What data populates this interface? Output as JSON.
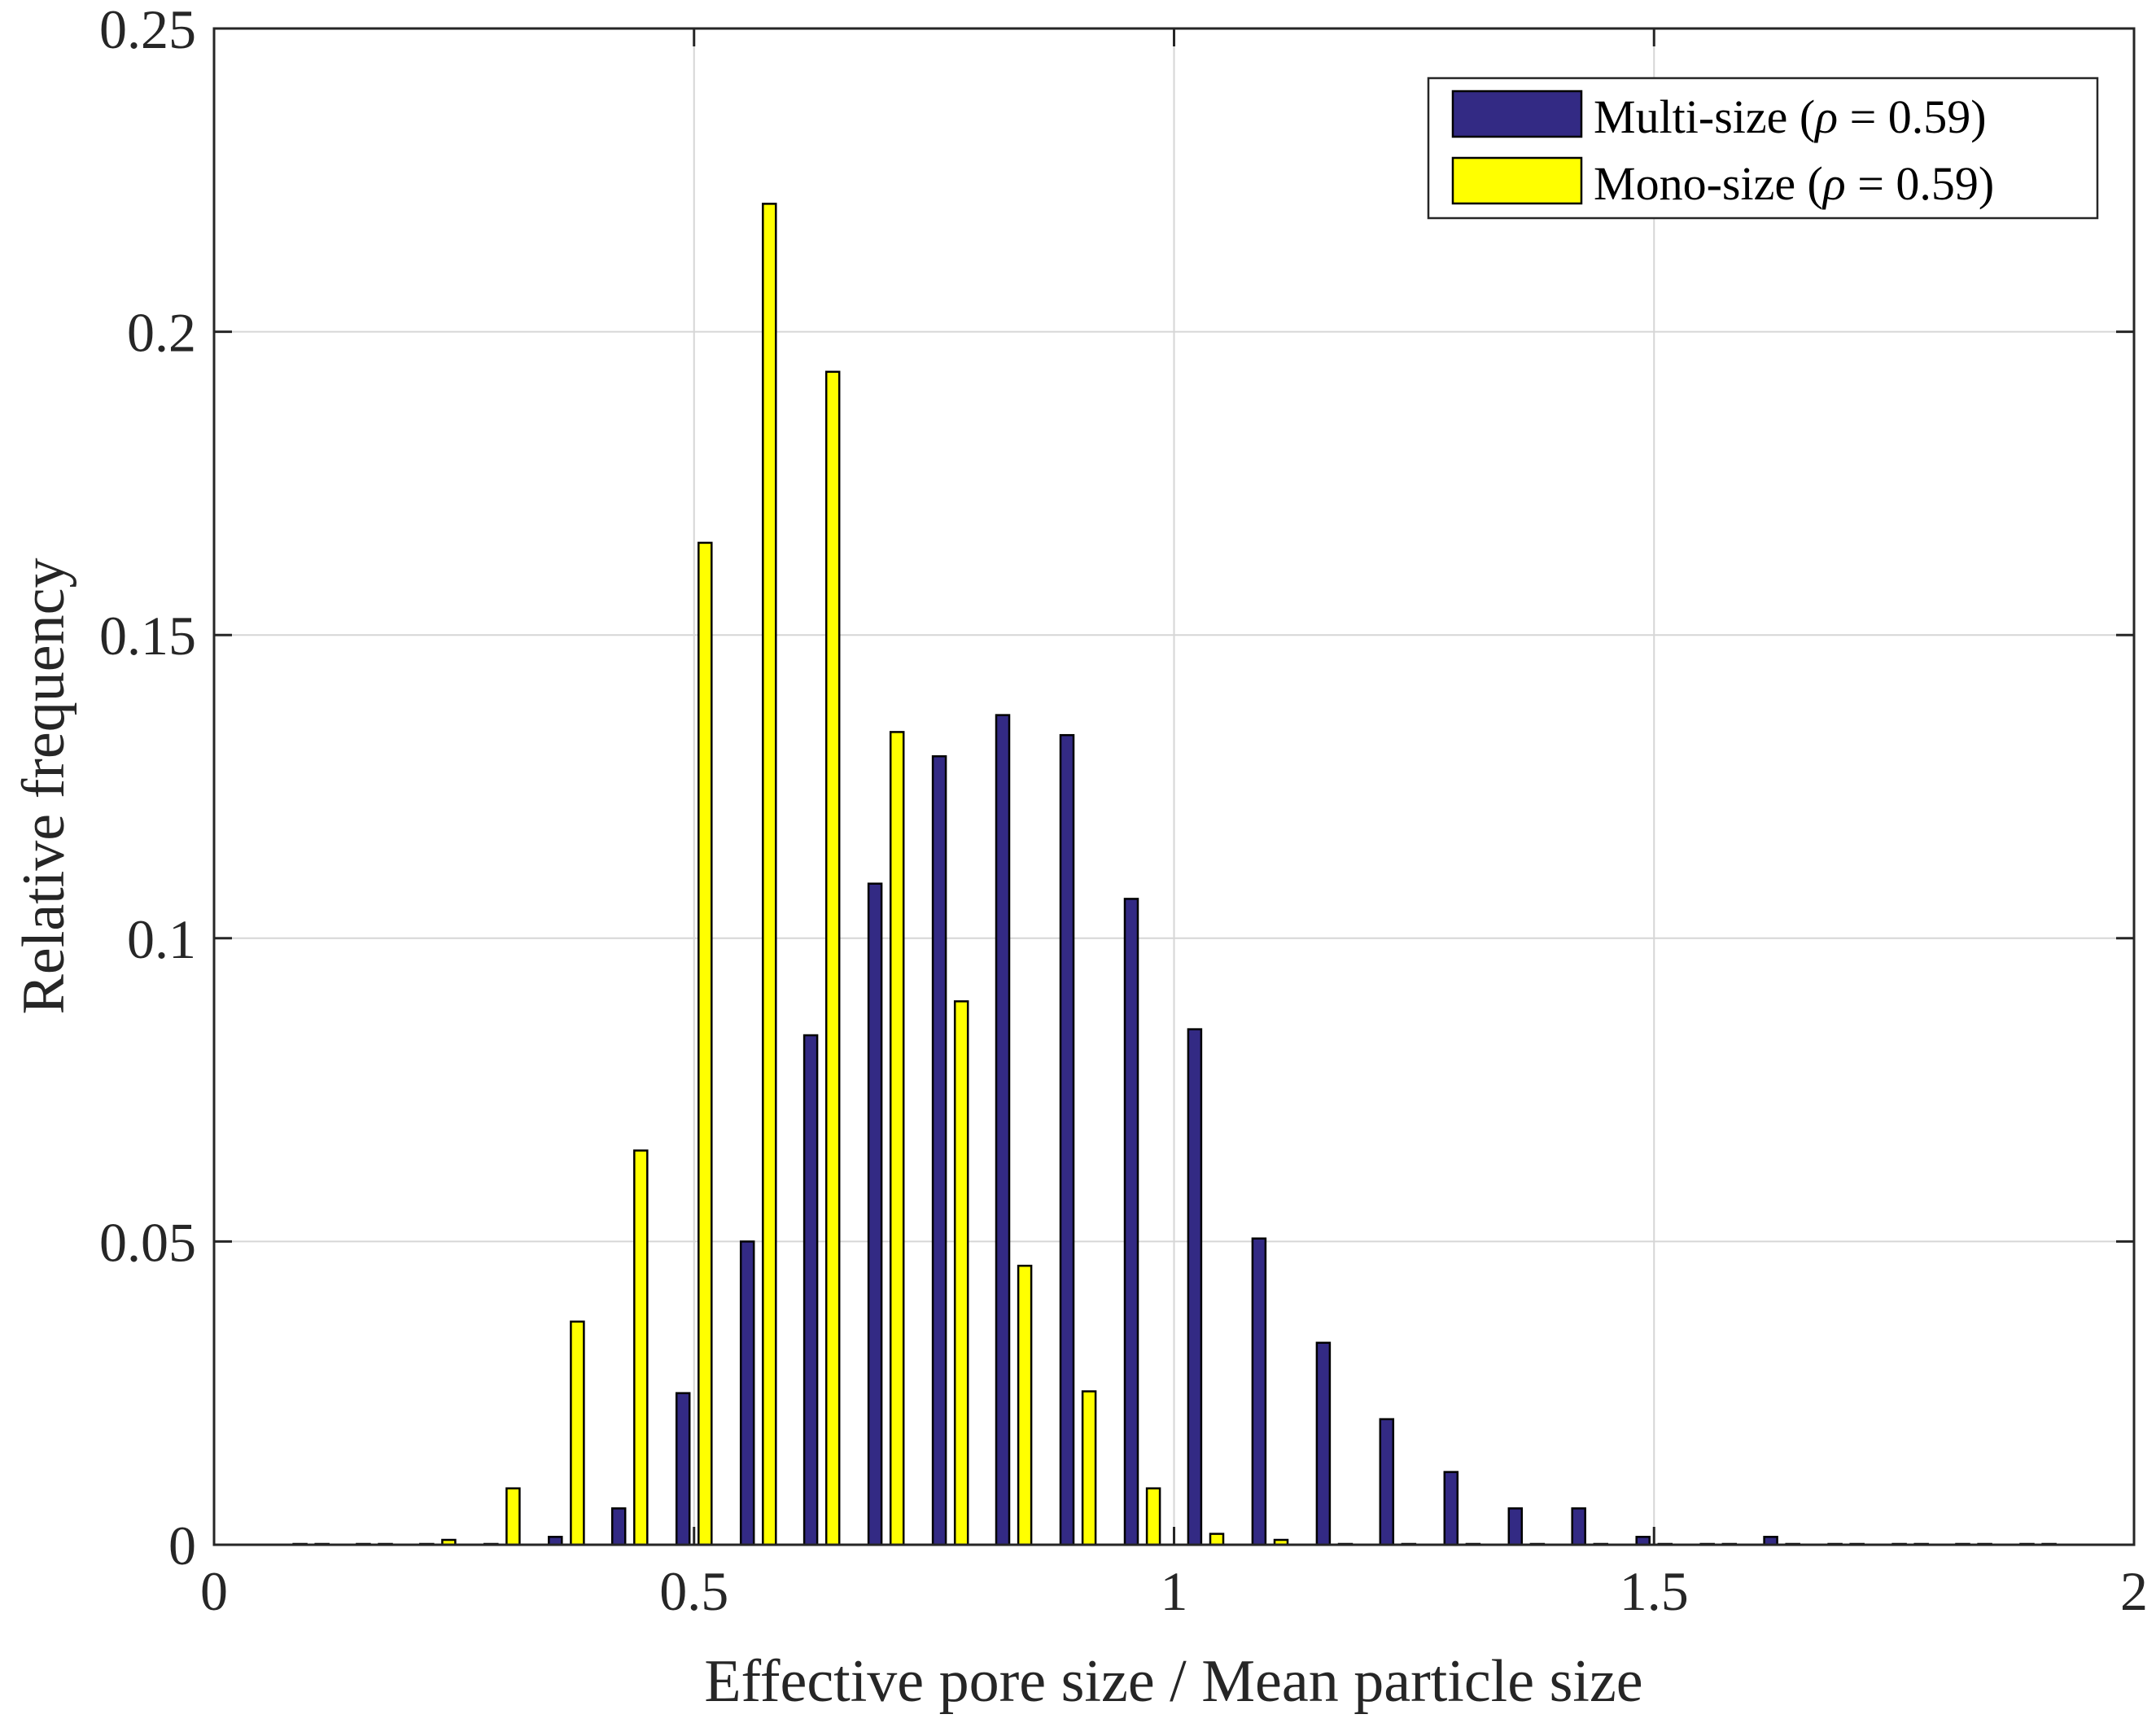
{
  "chart_data": {
    "type": "bar",
    "title": "",
    "xlabel": "Effective pore size / Mean particle size",
    "ylabel": "Relative frequency",
    "xlim": [
      0,
      2
    ],
    "ylim": [
      0,
      0.25
    ],
    "xticks": [
      0,
      0.5,
      1,
      1.5,
      2
    ],
    "xtick_labels": [
      "0",
      "0.5",
      "1",
      "1.5",
      "2"
    ],
    "yticks": [
      0,
      0.05,
      0.1,
      0.15,
      0.2,
      0.25
    ],
    "ytick_labels": [
      "0",
      "0.05",
      "0.1",
      "0.15",
      "0.2",
      "0.25"
    ],
    "grid": true,
    "legend_position": "top-right",
    "series": [
      {
        "name": "Multi-size (ρ = 0.59)",
        "legend_prefix": "Multi-size (",
        "legend_rho": "ρ",
        "legend_suffix": " = 0.59)",
        "color": "#332a84",
        "x": [
          0.101,
          0.167,
          0.233,
          0.3,
          0.367,
          0.433,
          0.5,
          0.567,
          0.633,
          0.7,
          0.767,
          0.833,
          0.9,
          0.967,
          1.033,
          1.1,
          1.167,
          1.233,
          1.3,
          1.367,
          1.433,
          1.5,
          1.567,
          1.633,
          1.7,
          1.767,
          1.833,
          1.9
        ],
        "values": [
          0,
          0,
          0,
          0,
          0.0013,
          0.006,
          0.025,
          0.05,
          0.084,
          0.109,
          0.13,
          0.1368,
          0.1335,
          0.1065,
          0.085,
          0.0505,
          0.0333,
          0.0207,
          0.012,
          0.006,
          0.006,
          0.0013,
          0,
          0.0013,
          0,
          0,
          0,
          0
        ]
      },
      {
        "name": "Mono-size (ρ = 0.59)",
        "legend_prefix": "Mono-size (",
        "legend_rho": "ρ",
        "legend_suffix": " = 0.59)",
        "color": "#ffff00",
        "x": [
          0.101,
          0.167,
          0.233,
          0.3,
          0.367,
          0.433,
          0.5,
          0.567,
          0.633,
          0.7,
          0.767,
          0.833,
          0.9,
          0.967,
          1.033,
          1.1,
          1.167,
          1.233,
          1.3,
          1.367,
          1.433,
          1.5,
          1.567,
          1.633,
          1.7,
          1.767,
          1.833,
          1.9
        ],
        "values": [
          0,
          0,
          0.0008,
          0.0093,
          0.0368,
          0.065,
          0.1652,
          0.2211,
          0.1934,
          0.134,
          0.0896,
          0.046,
          0.0253,
          0.0093,
          0.0018,
          0.0008,
          0,
          0,
          0,
          0,
          0,
          0,
          0,
          0,
          0,
          0,
          0,
          0
        ]
      }
    ]
  }
}
